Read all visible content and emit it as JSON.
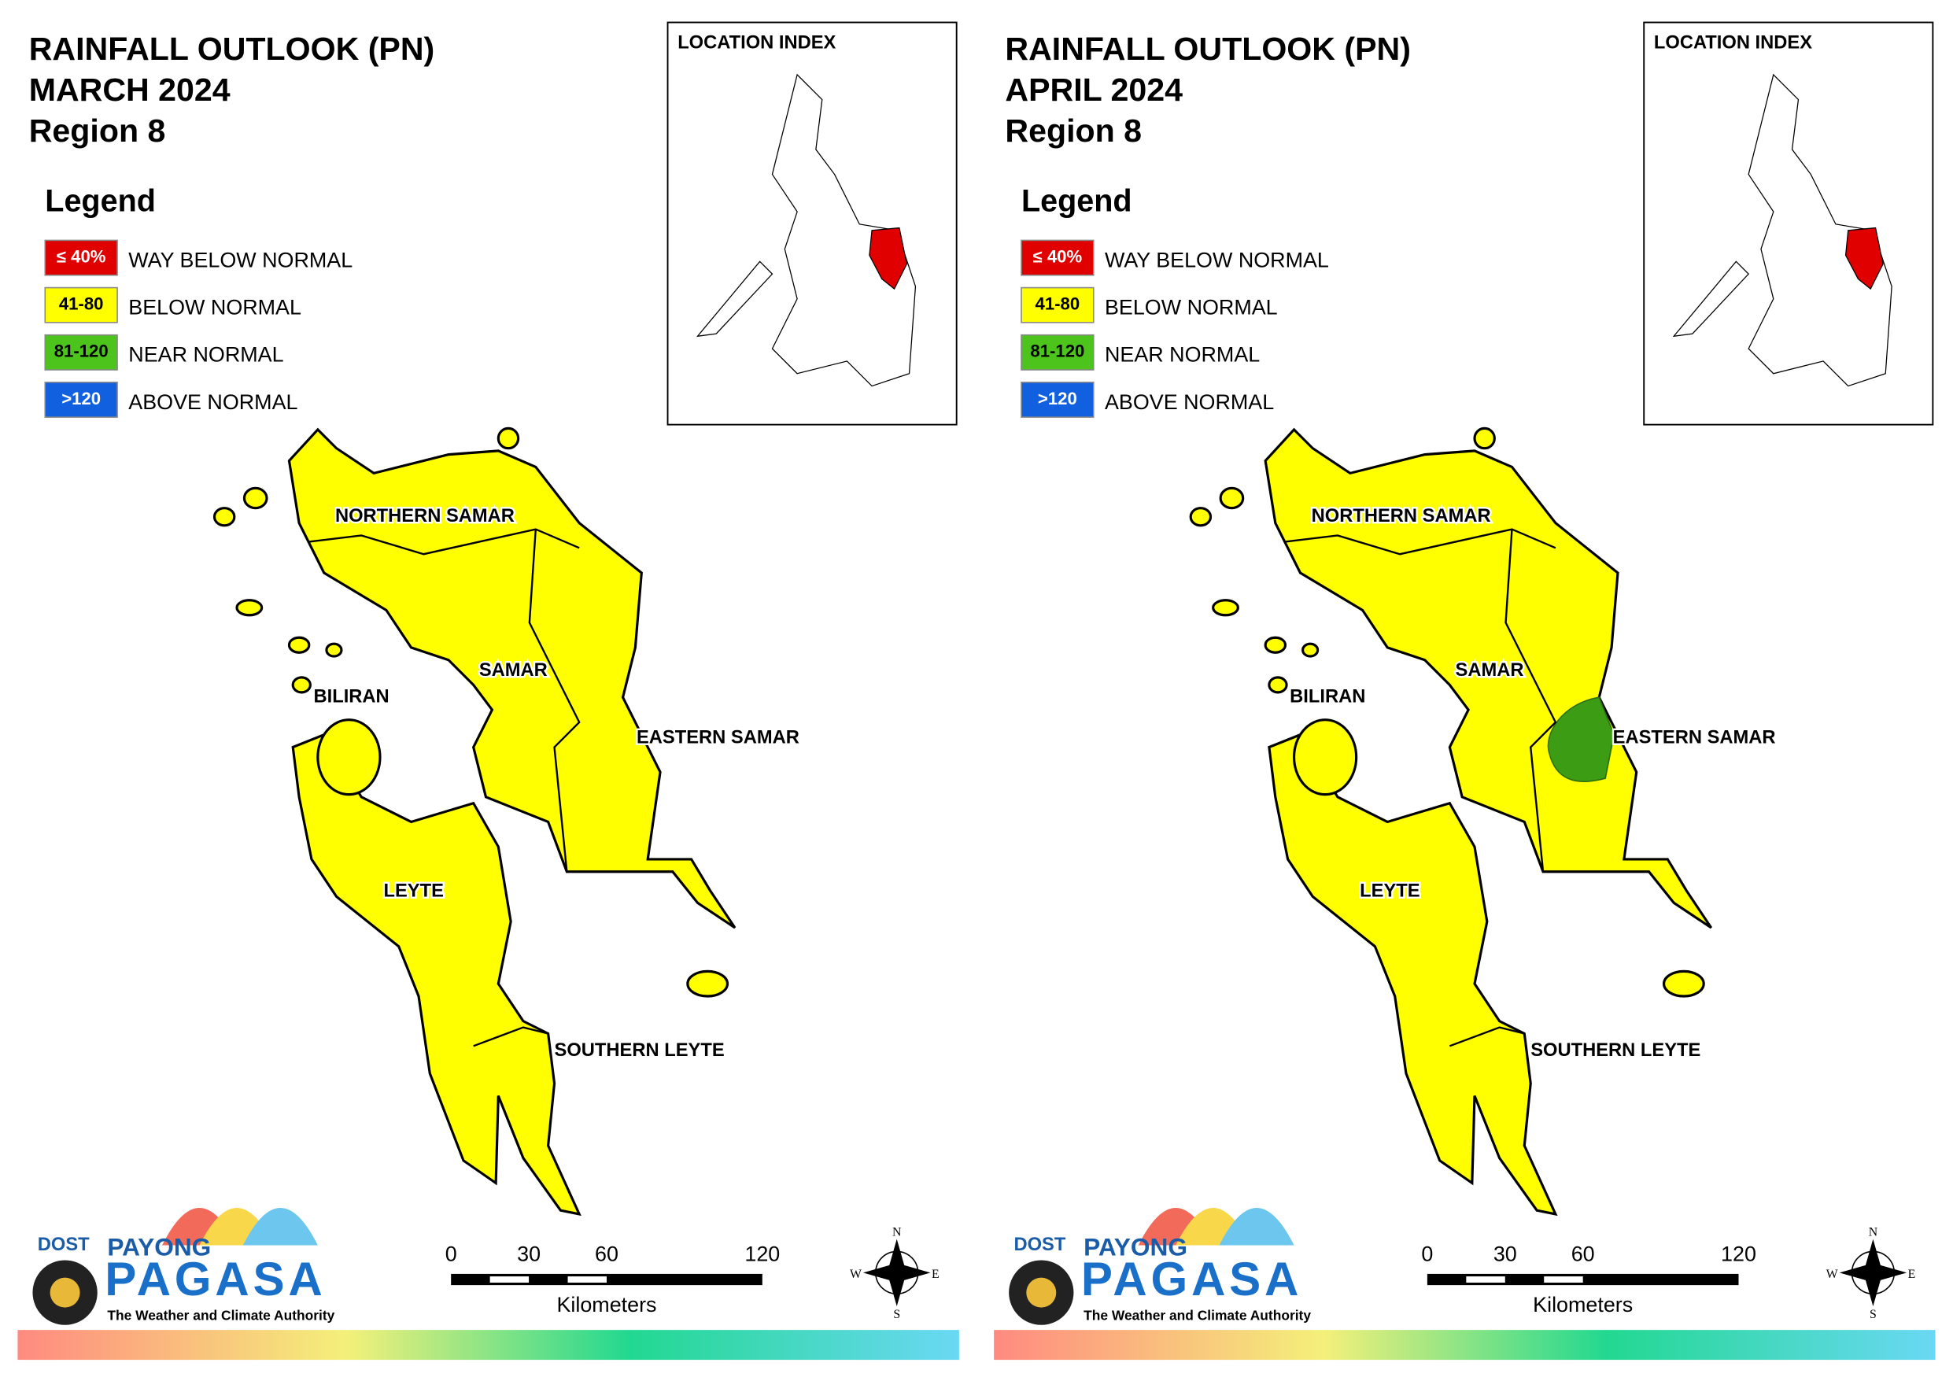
{
  "panels": [
    {
      "title": [
        "RAINFALL OUTLOOK (PN)",
        "MARCH 2024",
        "Region 8"
      ],
      "legend": {
        "heading": "Legend",
        "items": [
          {
            "box": "≤ 40%",
            "label": "WAY BELOW NORMAL",
            "color": "#e00000",
            "text_color": "#ffffff"
          },
          {
            "box": "41-80",
            "label": "BELOW NORMAL",
            "color": "#ffff00",
            "text_color": "#000000"
          },
          {
            "box": "81-120",
            "label": "NEAR NORMAL",
            "color": "#4cc41c",
            "text_color": "#000000"
          },
          {
            "box": ">120",
            "label": "ABOVE NORMAL",
            "color": "#1060e0",
            "text_color": "#ffffff"
          }
        ]
      },
      "location_index": "LOCATION INDEX",
      "provinces": [
        "NORTHERN SAMAR",
        "SAMAR",
        "BILIRAN",
        "EASTERN SAMAR",
        "LEYTE",
        "SOUTHERN LEYTE"
      ],
      "near_normal_area": false,
      "scale": {
        "ticks": [
          0,
          30,
          60,
          120
        ],
        "unit": "Kilometers"
      },
      "logo": {
        "agency": "DOST",
        "line1": "PAYONG",
        "line2": "PAGASA",
        "tagline": "The Weather and Climate Authority"
      },
      "compass": [
        "N",
        "E",
        "S",
        "W"
      ]
    },
    {
      "title": [
        "RAINFALL OUTLOOK (PN)",
        "APRIL 2024",
        "Region 8"
      ],
      "legend": {
        "heading": "Legend",
        "items": [
          {
            "box": "≤ 40%",
            "label": "WAY BELOW NORMAL",
            "color": "#e00000",
            "text_color": "#ffffff"
          },
          {
            "box": "41-80",
            "label": "BELOW NORMAL",
            "color": "#ffff00",
            "text_color": "#000000"
          },
          {
            "box": "81-120",
            "label": "NEAR NORMAL",
            "color": "#4cc41c",
            "text_color": "#000000"
          },
          {
            "box": ">120",
            "label": "ABOVE NORMAL",
            "color": "#1060e0",
            "text_color": "#ffffff"
          }
        ]
      },
      "location_index": "LOCATION INDEX",
      "provinces": [
        "NORTHERN SAMAR",
        "SAMAR",
        "BILIRAN",
        "EASTERN SAMAR",
        "LEYTE",
        "SOUTHERN LEYTE"
      ],
      "near_normal_area": true,
      "scale": {
        "ticks": [
          0,
          30,
          60,
          120
        ],
        "unit": "Kilometers"
      },
      "logo": {
        "agency": "DOST",
        "line1": "PAYONG",
        "line2": "PAGASA",
        "tagline": "The Weather and Climate Authority"
      },
      "compass": [
        "N",
        "E",
        "S",
        "W"
      ]
    }
  ]
}
